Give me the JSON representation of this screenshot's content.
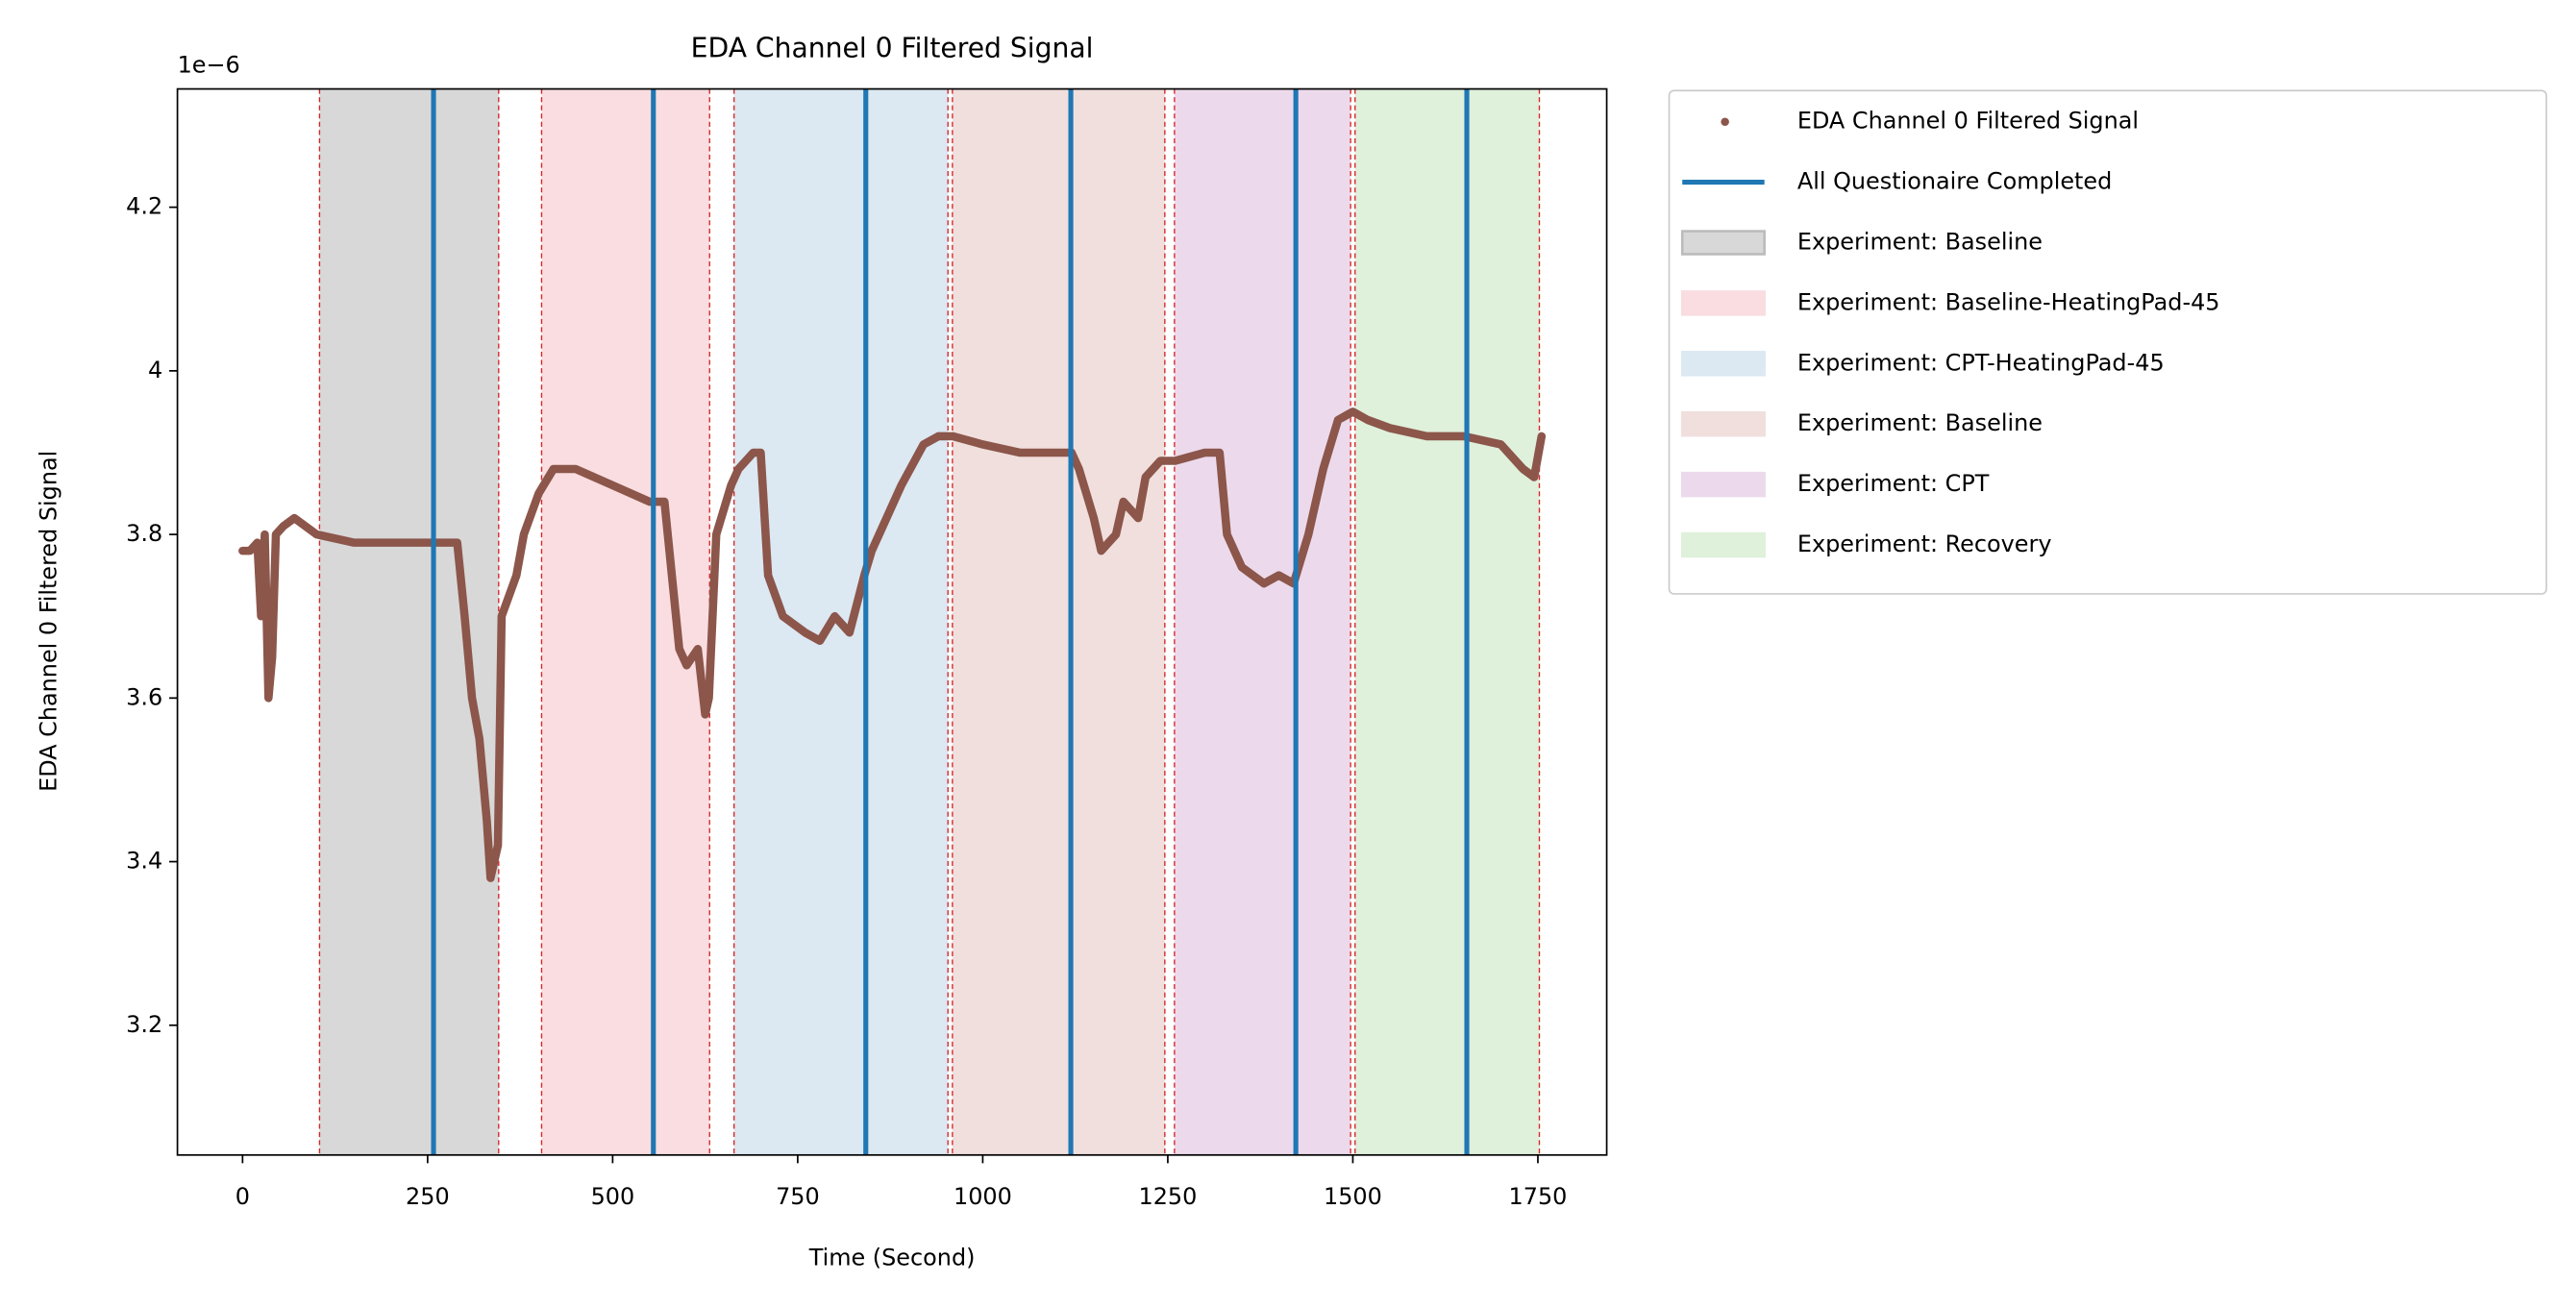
{
  "chart_data": {
    "type": "line",
    "title": "EDA Channel 0 Filtered Signal",
    "xlabel": "Time (Second)",
    "ylabel": "EDA Channel 0 Filtered Signal",
    "y_offset_text": "1e−6",
    "xlim": [
      -88,
      1843
    ],
    "ylim": [
      3.0414,
      4.3446
    ],
    "xticks": [
      0,
      250,
      500,
      750,
      1000,
      1250,
      1500,
      1750
    ],
    "yticks": [
      3.2,
      3.4,
      3.6,
      3.8,
      4.0,
      4.2
    ],
    "legend": "outside upper right",
    "series": [
      {
        "name": "EDA Channel 0 Filtered Signal",
        "color": "#8c564b",
        "x": [
          0,
          10,
          20,
          25,
          30,
          35,
          40,
          45,
          55,
          70,
          100,
          150,
          200,
          250,
          290,
          300,
          310,
          320,
          330,
          335,
          345,
          350,
          370,
          380,
          400,
          420,
          450,
          500,
          550,
          570,
          580,
          590,
          600,
          615,
          625,
          630,
          640,
          660,
          670,
          690,
          700,
          710,
          730,
          760,
          780,
          800,
          820,
          840,
          850,
          870,
          890,
          920,
          940,
          960,
          1000,
          1050,
          1100,
          1120,
          1130,
          1150,
          1160,
          1180,
          1190,
          1210,
          1220,
          1240,
          1260,
          1300,
          1320,
          1330,
          1350,
          1380,
          1400,
          1420,
          1440,
          1460,
          1480,
          1500,
          1520,
          1550,
          1600,
          1650,
          1700,
          1730,
          1745,
          1755
        ],
        "values": [
          3.78,
          3.78,
          3.79,
          3.7,
          3.8,
          3.6,
          3.65,
          3.8,
          3.81,
          3.82,
          3.8,
          3.79,
          3.79,
          3.79,
          3.79,
          3.7,
          3.6,
          3.55,
          3.45,
          3.38,
          3.42,
          3.7,
          3.75,
          3.8,
          3.85,
          3.88,
          3.88,
          3.86,
          3.84,
          3.84,
          3.75,
          3.66,
          3.64,
          3.66,
          3.58,
          3.6,
          3.8,
          3.86,
          3.88,
          3.9,
          3.9,
          3.75,
          3.7,
          3.68,
          3.67,
          3.7,
          3.68,
          3.75,
          3.78,
          3.82,
          3.86,
          3.91,
          3.92,
          3.92,
          3.91,
          3.9,
          3.9,
          3.9,
          3.88,
          3.82,
          3.78,
          3.8,
          3.84,
          3.82,
          3.87,
          3.89,
          3.89,
          3.9,
          3.9,
          3.8,
          3.76,
          3.74,
          3.75,
          3.74,
          3.8,
          3.88,
          3.94,
          3.95,
          3.94,
          3.93,
          3.92,
          3.92,
          3.91,
          3.88,
          3.87,
          3.92
        ]
      }
    ],
    "vlines": {
      "name": "All Questionaire Completed",
      "color": "#1f77b4",
      "x": [
        258,
        555,
        842,
        1119,
        1423,
        1654
      ]
    },
    "span_edge_color": "#d62728",
    "spans": [
      {
        "name": "Experiment: Baseline",
        "color": "#d8d8d8",
        "start": 104,
        "end": 346
      },
      {
        "name": "Experiment: Baseline-HeatingPad-45",
        "color": "#f9dde0",
        "start": 404,
        "end": 631
      },
      {
        "name": "Experiment: CPT-HeatingPad-45",
        "color": "#dce8f2",
        "start": 664,
        "end": 953
      },
      {
        "name": "Experiment: Baseline",
        "color": "#f0dfdd",
        "start": 959,
        "end": 1246
      },
      {
        "name": "Experiment: CPT",
        "color": "#ecdaec",
        "start": 1259,
        "end": 1497
      },
      {
        "name": "Experiment: Recovery",
        "color": "#dff0db",
        "start": 1503,
        "end": 1752
      }
    ]
  }
}
